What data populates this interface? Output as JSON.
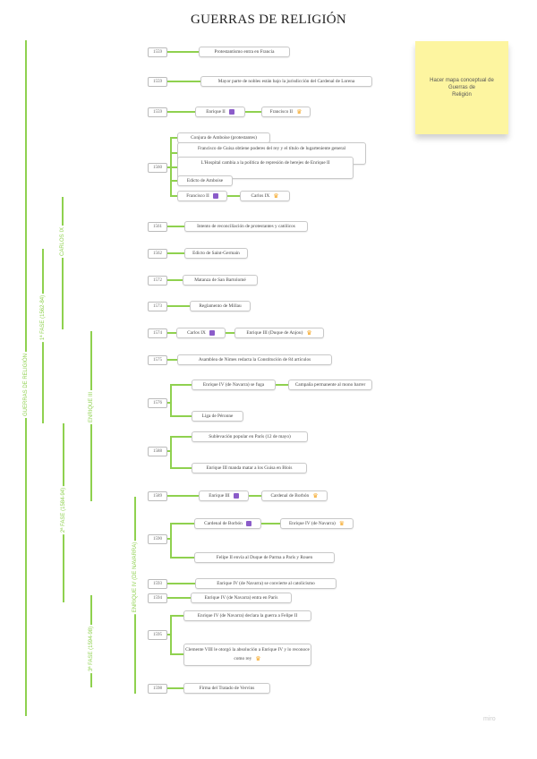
{
  "title": "GUERRAS DE RELIGIÓN",
  "branches": {
    "root": "GUERRAS DE RELIGIÓN",
    "fase1": "1ª FASE (1562-84)",
    "carlos9": "CARLOS IX",
    "enrique3": "ENRIQUE III",
    "fase2": "2ª FASE (1584-94)",
    "fase3": "3ª FASE (1594-98)",
    "enrique4": "ENRIQUE IV (DE NAVARRA)"
  },
  "sticky_note": [
    "Hacer mapa conceptual de",
    "Guerras de",
    "Religión"
  ],
  "rows": [
    {
      "year": "1559",
      "items": [
        {
          "text": "Protestantismo entra en Francia"
        }
      ]
    },
    {
      "year": "1559",
      "items": [
        {
          "text": "Mayor parte de nobles están bajo la jurisdicción del Cardenal de Lorena"
        }
      ]
    },
    {
      "year": "1559",
      "items": [
        {
          "text": "Enrique II",
          "icon": "ruler-icon",
          "next": {
            "text": "Francisco II",
            "icon": "crown-icon"
          }
        }
      ]
    },
    {
      "year": "1560",
      "items": [
        {
          "text": "Conjura de Amboise (protestantes)"
        },
        {
          "text": "Francisco de Guisa obtiene poderes del rey y el título de lugarteniente general"
        },
        {
          "text": "L'Hospital cambia a la política de represión de herejes de Enrique II"
        },
        {
          "text": "Edicto de Amboise"
        },
        {
          "text": "Francisco II",
          "icon": "ruler-icon",
          "next": {
            "text": "Carlos IX",
            "icon": "crown-icon"
          }
        }
      ]
    },
    {
      "year": "1561",
      "items": [
        {
          "text": "Intento de reconciliación de protestantes y católicos"
        }
      ]
    },
    {
      "year": "1562",
      "items": [
        {
          "text": "Edicto de Saint-Germain"
        }
      ]
    },
    {
      "year": "1572",
      "items": [
        {
          "text": "Matanza de San Bartolomé"
        }
      ]
    },
    {
      "year": "1573",
      "items": [
        {
          "text": "Reglamento de Millau"
        }
      ]
    },
    {
      "year": "1574",
      "items": [
        {
          "text": "Carlos IX",
          "icon": "ruler-icon",
          "next": {
            "text": "Enrique III (Duque de Anjou)",
            "icon": "crown-icon"
          }
        }
      ]
    },
    {
      "year": "1575",
      "items": [
        {
          "text": "Asamblea de Nimes redacta la Constitución de 84 artículos"
        }
      ]
    },
    {
      "year": "1576",
      "items": [
        {
          "text": "Enrique IV (de Navarra) se fuga",
          "next": {
            "text": "Campaña permanente al mono barrer"
          }
        },
        {
          "text": "Liga de Péronne"
        }
      ]
    },
    {
      "year": "1588",
      "items": [
        {
          "text": "Sublevación popular en París (12 de mayo)"
        },
        {
          "text": "Enrique III manda matar a los Guisa en Blois"
        }
      ]
    },
    {
      "year": "1589",
      "items": [
        {
          "text": "Enrique III",
          "icon": "ruler-icon",
          "next": {
            "text": "Cardenal de Borbón",
            "icon": "crown-icon"
          }
        }
      ]
    },
    {
      "year": "1590",
      "items": [
        {
          "text": "Cardenal de Borbón",
          "icon": "ruler-icon",
          "next": {
            "text": "Enrique IV (de Navarra)",
            "icon": "crown-icon"
          }
        },
        {
          "text": "Felipe II envía al Duque de Parma a París y Rouen"
        }
      ]
    },
    {
      "year": "1593",
      "items": [
        {
          "text": "Enrique IV (de Navarra) se convierte al catolicismo"
        }
      ]
    },
    {
      "year": "1594",
      "items": [
        {
          "text": "Enrique IV (de Navarra) entra en París"
        }
      ]
    },
    {
      "year": "1595",
      "items": [
        {
          "text": "Enrique IV (de Navarra) declara la guerra a Felipe II"
        },
        {
          "text": "Clemente VIII le otorgó la absolución a Enrique IV y lo reconoce como rey",
          "icon": "crown-icon"
        }
      ]
    },
    {
      "year": "1598",
      "items": [
        {
          "text": "Firma del Tratado de Vervins"
        }
      ]
    }
  ],
  "brand": "miro",
  "colors": {
    "branch": "#8fd14f",
    "ruler_icon": "#8b5cc9",
    "crown_icon": "#f5a623",
    "sticky": "#fdf5a0"
  }
}
